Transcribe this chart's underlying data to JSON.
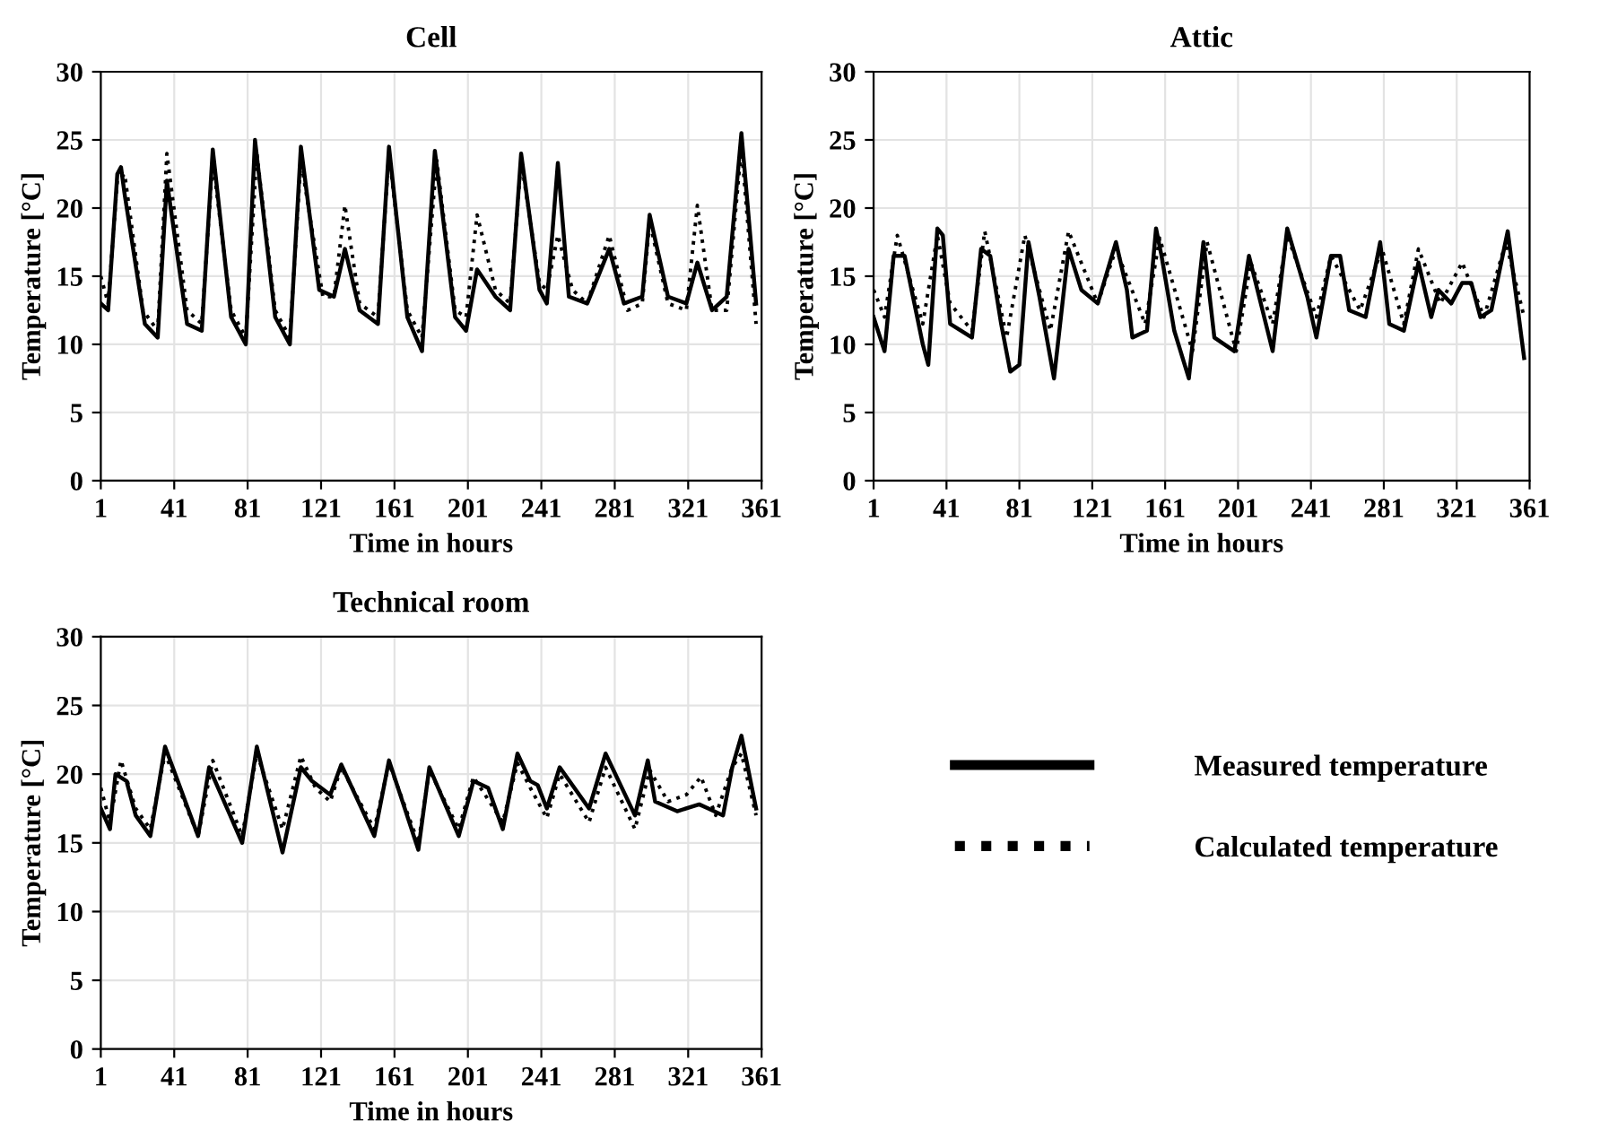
{
  "chart_data": [
    {
      "type": "line",
      "title": "Cell",
      "xlabel": "Time in hours",
      "ylabel": "Temperature [°C]",
      "xlim": [
        1,
        361
      ],
      "ylim": [
        0,
        30
      ],
      "xticks": [
        1,
        41,
        81,
        121,
        161,
        201,
        241,
        281,
        321,
        361
      ],
      "yticks": [
        0,
        5,
        10,
        15,
        20,
        25,
        30
      ],
      "grid": true,
      "legend": false,
      "series": [
        {
          "color": "#000000",
          "line_style": "solid",
          "x": [
            1,
            5,
            10,
            12,
            14,
            25,
            32,
            37,
            48,
            56,
            62,
            72,
            80,
            85,
            96,
            104,
            110,
            120,
            128,
            134,
            142,
            152,
            158,
            168,
            176,
            183,
            194,
            200,
            206,
            216,
            224,
            230,
            240,
            244,
            250,
            256,
            266,
            278,
            286,
            296,
            300,
            310,
            320,
            326,
            334,
            342,
            350,
            358
          ],
          "values": [
            13,
            12.5,
            22.5,
            23,
            21,
            11.5,
            10.5,
            22,
            11.5,
            11,
            24.3,
            12,
            10,
            25,
            12,
            10,
            24.5,
            14,
            13.5,
            17,
            12.5,
            11.5,
            24.5,
            12,
            9.5,
            24.2,
            12,
            11,
            15.5,
            13.5,
            12.5,
            24,
            14,
            13,
            23.3,
            13.5,
            13,
            17,
            13,
            13.5,
            19.5,
            13.5,
            13,
            16,
            12.5,
            13.5,
            25.5,
            13
          ]
        },
        {
          "color": "#000000",
          "line_style": "dotted",
          "x": [
            1,
            5,
            10,
            14,
            24,
            32,
            37,
            48,
            56,
            62,
            72,
            80,
            86,
            96,
            104,
            110,
            122,
            128,
            134,
            142,
            152,
            158,
            168,
            176,
            184,
            194,
            200,
            206,
            216,
            224,
            230,
            240,
            244,
            250,
            258,
            266,
            278,
            288,
            296,
            300,
            310,
            320,
            326,
            334,
            342,
            350,
            358
          ],
          "values": [
            15,
            13,
            22,
            22.5,
            12.5,
            11,
            24,
            12.5,
            11.5,
            23.5,
            12.5,
            10.5,
            24,
            12.5,
            10.5,
            23.5,
            13.5,
            13.5,
            20.2,
            13,
            12,
            24,
            12.5,
            10.5,
            23.5,
            12.5,
            12,
            19.5,
            14,
            13,
            23.5,
            14.5,
            14,
            18,
            14,
            13,
            18,
            12.5,
            13,
            19,
            13,
            12.5,
            20.2,
            12.5,
            12.5,
            24.5,
            11.5
          ]
        }
      ]
    },
    {
      "type": "line",
      "title": "Attic",
      "xlabel": "Time in hours",
      "ylabel": "Temperature [°C]",
      "xlim": [
        1,
        361
      ],
      "ylim": [
        0,
        30
      ],
      "xticks": [
        1,
        41,
        81,
        121,
        161,
        201,
        241,
        281,
        321,
        361
      ],
      "yticks": [
        0,
        5,
        10,
        15,
        20,
        25,
        30
      ],
      "grid": true,
      "legend": false,
      "series": [
        {
          "color": "#000000",
          "line_style": "solid",
          "x": [
            1,
            7,
            12,
            18,
            28,
            31,
            36,
            39,
            43,
            55,
            60,
            65,
            71,
            76,
            81,
            86,
            92,
            100,
            108,
            115,
            124,
            134,
            140,
            143,
            151,
            156,
            159,
            166,
            174,
            182,
            188,
            199,
            207,
            220,
            228,
            239,
            244,
            252,
            257,
            262,
            271,
            279,
            284,
            292,
            300,
            307,
            311,
            318,
            324,
            329,
            334,
            340,
            349,
            358
          ],
          "values": [
            12,
            9.5,
            16.5,
            16.5,
            10,
            8.5,
            18.5,
            18,
            11.5,
            10.5,
            17,
            16.5,
            11.5,
            8,
            8.5,
            17.5,
            13.5,
            7.5,
            17,
            14,
            13,
            17.5,
            14,
            10.5,
            11,
            18.5,
            16.5,
            11,
            7.5,
            17.5,
            10.5,
            9.5,
            16.5,
            9.5,
            18.5,
            13.5,
            10.5,
            16.5,
            16.5,
            12.5,
            12,
            17.5,
            11.5,
            11,
            16,
            12,
            14,
            13,
            14.5,
            14.5,
            12,
            12.5,
            18.3,
            9
          ]
        },
        {
          "color": "#000000",
          "line_style": "dotted",
          "x": [
            1,
            7,
            14,
            28,
            36,
            43,
            55,
            62,
            74,
            84,
            98,
            108,
            124,
            134,
            150,
            158,
            176,
            184,
            200,
            208,
            220,
            228,
            244,
            252,
            268,
            280,
            292,
            300,
            312,
            324,
            336,
            348,
            358
          ],
          "values": [
            14,
            12,
            18,
            11.5,
            18,
            13,
            11,
            18.3,
            10.5,
            18,
            11,
            18.3,
            13,
            17,
            11.5,
            17.8,
            9.5,
            17.5,
            9.5,
            16,
            11.5,
            18,
            12,
            16.5,
            12.5,
            17,
            11.5,
            17,
            13,
            16,
            12,
            17.5,
            12
          ]
        }
      ]
    },
    {
      "type": "line",
      "title": "Technical room",
      "xlabel": "Time in hours",
      "ylabel": "Temperature [°C]",
      "xlim": [
        1,
        361
      ],
      "ylim": [
        0,
        30
      ],
      "xticks": [
        1,
        41,
        81,
        121,
        161,
        201,
        241,
        281,
        321,
        361
      ],
      "yticks": [
        0,
        5,
        10,
        15,
        20,
        25,
        30
      ],
      "grid": true,
      "legend": "right",
      "series": [
        {
          "name": "Measured temperature",
          "color": "#000000",
          "line_style": "solid",
          "x": [
            1,
            6,
            9,
            15,
            20,
            28,
            36,
            54,
            60,
            78,
            86,
            100,
            110,
            116,
            126,
            132,
            150,
            158,
            174,
            180,
            196,
            204,
            212,
            220,
            228,
            235,
            239,
            244,
            251,
            259,
            267,
            276,
            292,
            299,
            303,
            315,
            327,
            332,
            340,
            345,
            350,
            358
          ],
          "values": [
            17.5,
            16,
            20,
            19.5,
            17,
            15.5,
            22,
            15.5,
            20.5,
            15,
            22,
            14.3,
            20.5,
            19.5,
            18.5,
            20.7,
            15.5,
            21,
            14.5,
            20.5,
            15.5,
            19.5,
            19,
            16,
            21.5,
            19.5,
            19.2,
            17.5,
            20.5,
            19,
            17.5,
            21.5,
            17,
            21,
            18,
            17.3,
            17.8,
            17.5,
            17,
            20.5,
            22.8,
            17.5
          ]
        },
        {
          "name": "Calculated temperature",
          "color": "#000000",
          "line_style": "dotted",
          "x": [
            1,
            6,
            12,
            20,
            28,
            36,
            54,
            62,
            78,
            86,
            100,
            110,
            118,
            126,
            132,
            150,
            158,
            174,
            180,
            196,
            204,
            220,
            228,
            235,
            244,
            251,
            267,
            276,
            292,
            300,
            310,
            320,
            328,
            336,
            345,
            350,
            358
          ],
          "values": [
            19,
            16.5,
            21,
            17.5,
            16,
            21.5,
            15.5,
            21,
            15.5,
            21.5,
            16,
            21.3,
            19,
            18,
            20.5,
            16,
            20.8,
            15,
            20.3,
            16,
            19.8,
            16.5,
            20.8,
            19,
            16.8,
            20,
            16.5,
            20.5,
            16,
            20.3,
            18,
            18.5,
            19.8,
            17,
            20.5,
            21.5,
            17
          ]
        }
      ]
    }
  ]
}
